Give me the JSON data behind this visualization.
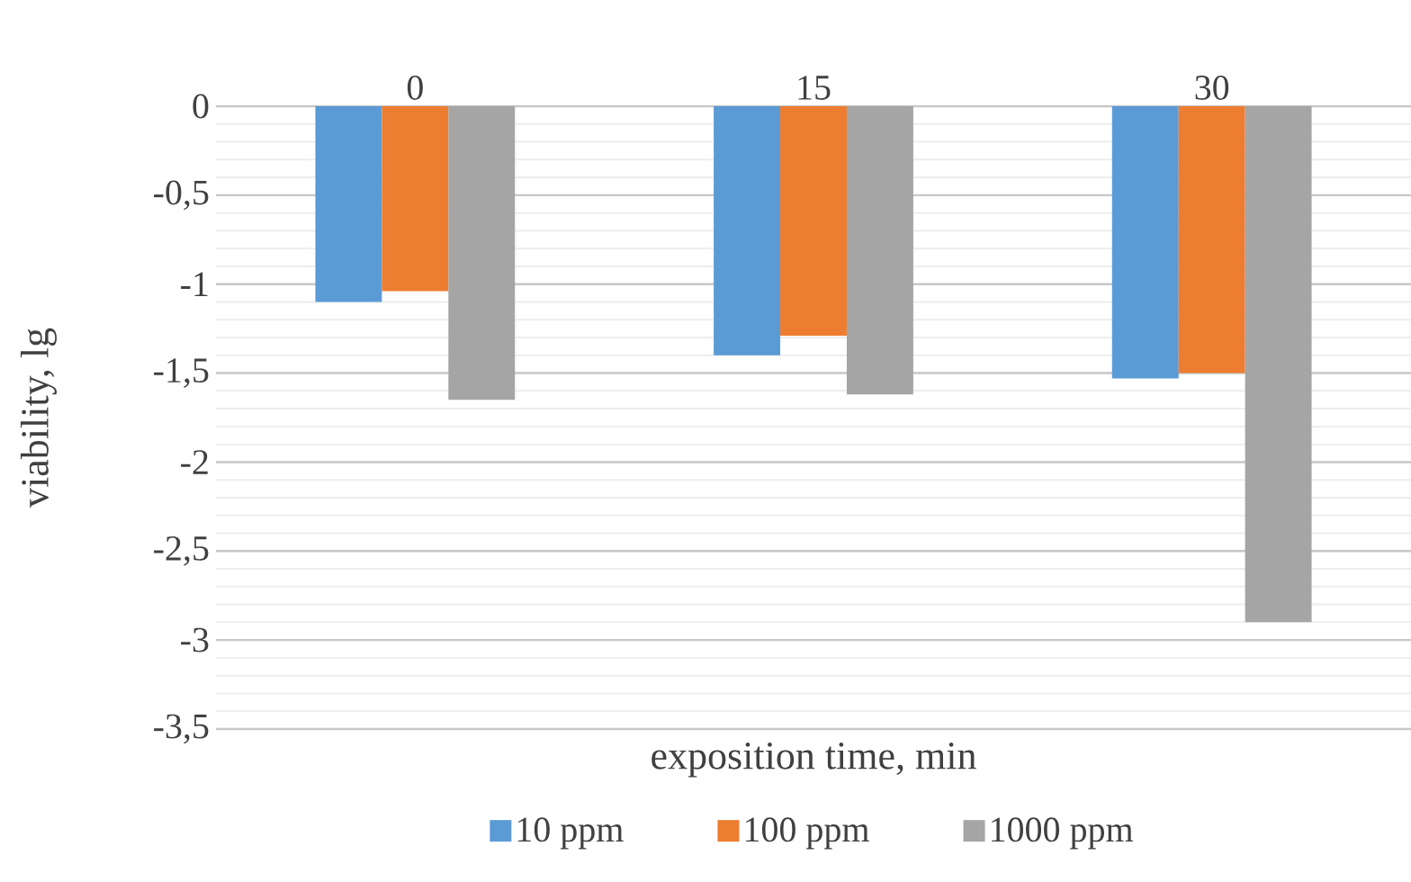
{
  "chart_data": {
    "type": "bar",
    "xlabel": "exposition time, min",
    "ylabel": "viability, lg",
    "categories": [
      "0",
      "15",
      "30"
    ],
    "series": [
      {
        "name": "10 ppm",
        "color": "#5b9bd5",
        "values": [
          -1.1,
          -1.4,
          -1.53
        ]
      },
      {
        "name": "100 ppm",
        "color": "#ed7d31",
        "values": [
          -1.04,
          -1.29,
          -1.5
        ]
      },
      {
        "name": "1000 ppm",
        "color": "#a5a5a5",
        "values": [
          -1.65,
          -1.62,
          -2.9
        ]
      }
    ],
    "ylim": [
      -3.5,
      0
    ],
    "yticks": [
      0,
      {
        "value": -0.5,
        "label": "-0,5"
      },
      -1,
      {
        "value": -1.5,
        "label": "-1,5"
      },
      -2,
      {
        "value": -2.5,
        "label": "-2,5"
      },
      -3,
      {
        "value": -3.5,
        "label": "-3,5"
      }
    ],
    "grid": "y",
    "legend": "bottom"
  }
}
